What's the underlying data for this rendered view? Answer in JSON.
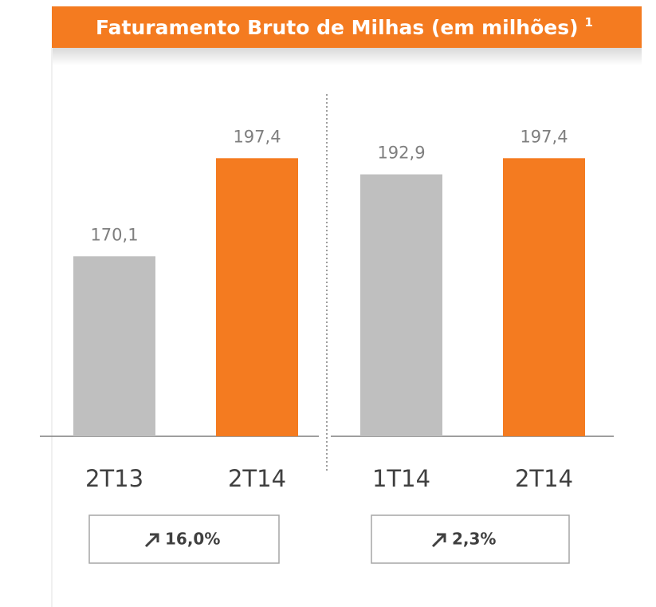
{
  "chart_data": {
    "type": "bar",
    "title": "Faturamento Bruto de Milhas (em milhões)",
    "title_note": "1",
    "categories": [
      "2T13",
      "2T14",
      "1T14",
      "2T14"
    ],
    "values": [
      170.1,
      197.4,
      192.9,
      197.4
    ],
    "value_labels": [
      "170,1",
      "197,4",
      "192,9",
      "197,4"
    ],
    "colors": [
      "#bfbfbf",
      "#f47b20",
      "#bfbfbf",
      "#f47b20"
    ],
    "ylim": [
      120,
      200
    ],
    "annotations": [
      "16,0%",
      "2,3%"
    ]
  }
}
